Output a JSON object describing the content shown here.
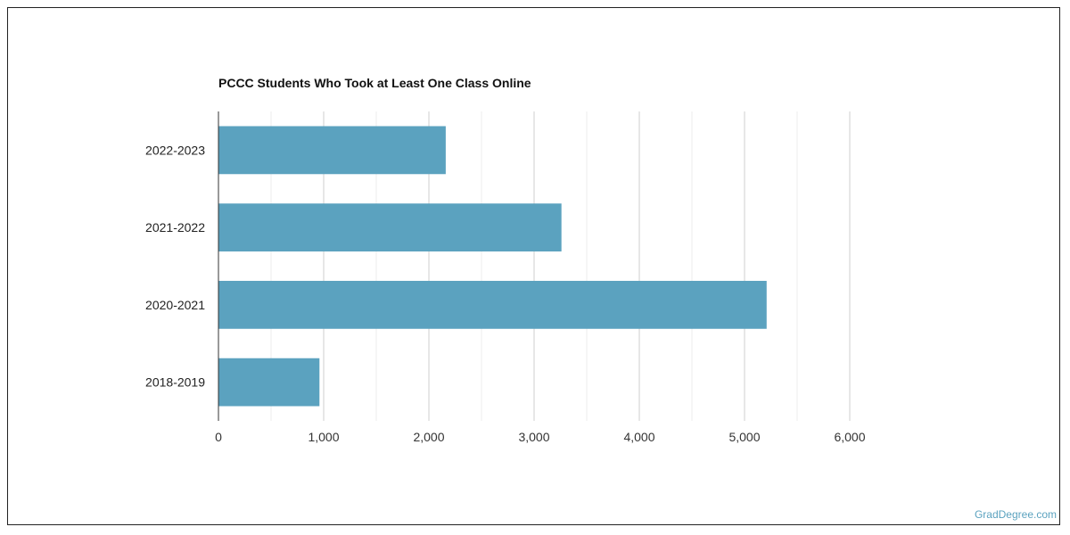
{
  "chart_data": {
    "type": "bar",
    "orientation": "horizontal",
    "title": "PCCC Students Who Took at Least One Class Online",
    "categories": [
      "2022-2023",
      "2021-2022",
      "2020-2021",
      "2018-2019"
    ],
    "values": [
      2160,
      3260,
      5210,
      960
    ],
    "xlim": [
      0,
      6000
    ],
    "xticks": [
      0,
      1000,
      2000,
      3000,
      4000,
      5000,
      6000
    ],
    "xtick_labels": [
      "0",
      "1,000",
      "2,000",
      "3,000",
      "4,000",
      "5,000",
      "6,000"
    ],
    "xlabel": "",
    "ylabel": "",
    "grid": "vertical",
    "bar_color": "#5ba2bf"
  },
  "watermark": "GradDegree.com"
}
